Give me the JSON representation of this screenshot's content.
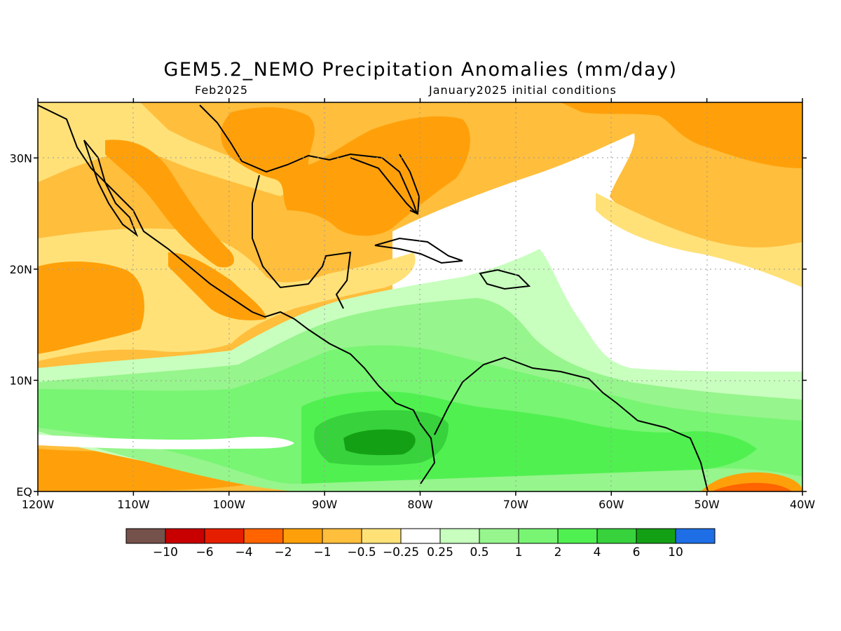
{
  "title": "GEM5.2_NEMO Precipitation Anomalies (mm/day)",
  "subtitle_left": "Feb2025",
  "subtitle_right": "January2025 initial conditions",
  "map": {
    "projection": "lat-lon",
    "lon_range": [
      -120,
      -40
    ],
    "lat_range": [
      0,
      35
    ],
    "grid": true,
    "lat_ticks": [
      {
        "value": 30,
        "label": "30N"
      },
      {
        "value": 20,
        "label": "20N"
      },
      {
        "value": 10,
        "label": "10N"
      },
      {
        "value": 0,
        "label": "EQ"
      }
    ],
    "lon_ticks": [
      {
        "value": -120,
        "label": "120W"
      },
      {
        "value": -110,
        "label": "110W"
      },
      {
        "value": -100,
        "label": "100W"
      },
      {
        "value": -90,
        "label": "90W"
      },
      {
        "value": -80,
        "label": "80W"
      },
      {
        "value": -70,
        "label": "70W"
      },
      {
        "value": -60,
        "label": "60W"
      },
      {
        "value": -50,
        "label": "50W"
      },
      {
        "value": -40,
        "label": "40W"
      }
    ]
  },
  "colorbar": {
    "colors": [
      "#74514a",
      "#c80000",
      "#e61e00",
      "#ff6400",
      "#ffa00a",
      "#ffbe3c",
      "#ffe178",
      "#ffffff",
      "#c8ffbe",
      "#96f58c",
      "#78f573",
      "#50f050",
      "#37d23c",
      "#14a014",
      "#1e6ee6"
    ],
    "labels": [
      "−10",
      "−6",
      "−4",
      "−2",
      "−1",
      "−0.5",
      "−0.25",
      "0.25",
      "0.5",
      "1",
      "2",
      "4",
      "6",
      "10"
    ]
  }
}
